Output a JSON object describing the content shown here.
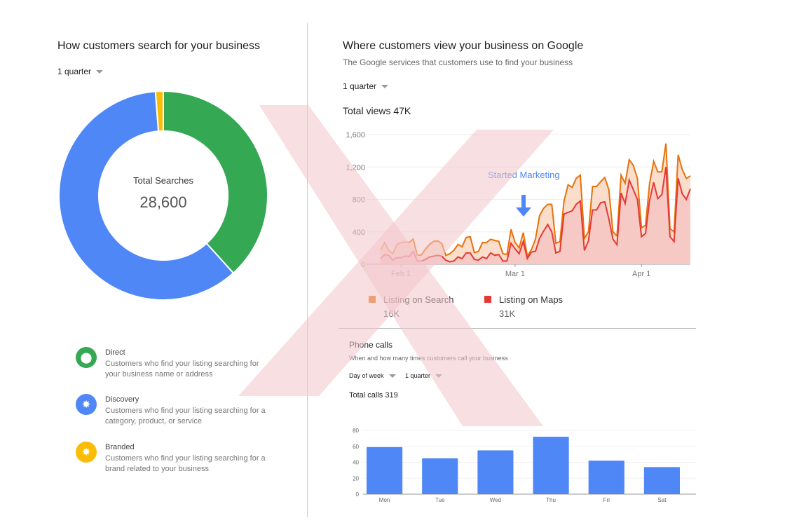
{
  "left": {
    "title": "How customers search for your business",
    "period": "1 quarter",
    "donut": {
      "center_label": "Total Searches",
      "total": "28,600",
      "slices_percent": [
        {
          "key": "direct",
          "value": 38.3,
          "color": "#34a853"
        },
        {
          "key": "discovery",
          "value": 60.5,
          "color": "#4f87f6"
        },
        {
          "key": "branded",
          "value": 1.2,
          "color": "#fbbc05"
        }
      ]
    },
    "legend": [
      {
        "name": "Direct",
        "desc": "Customers who find your listing searching for your business name or address",
        "color": "#34a853",
        "icon": "map-pin-icon"
      },
      {
        "name": "Discovery",
        "desc": "Customers who find your listing searching for a category, product, or service",
        "color": "#4f87f6",
        "icon": "sparkle-icon"
      },
      {
        "name": "Branded",
        "desc": "Customers who find your listing searching for a brand related to your business",
        "color": "#fbbc05",
        "icon": "sparkle-icon"
      }
    ]
  },
  "views": {
    "title": "Where customers view your business on Google",
    "subtitle": "The Google services that customers use to find your business",
    "period": "1 quarter",
    "total": "Total views 47K",
    "annotation": "Started Marketing",
    "legend": [
      {
        "name": "Listing on Search",
        "value": "16K",
        "color": "#e8710a"
      },
      {
        "name": "Listing on Maps",
        "value": "31K",
        "color": "#e53935"
      }
    ]
  },
  "calls": {
    "title": "Phone calls",
    "subtitle": "When and how many times customers call your business",
    "filter_1": "Day of week",
    "filter_2": "1 quarter",
    "total": "Total calls 319"
  },
  "chart_data": [
    {
      "type": "area",
      "stacked": true,
      "x_start": "Jan 27",
      "x_end": "Apr 12",
      "x_ticks": [
        "Feb 1",
        "Mar 1",
        "Apr 1"
      ],
      "y_ticks": [
        "0",
        "400",
        "800",
        "1,200",
        "1,600"
      ],
      "ylim": [
        0,
        1600
      ],
      "grid": true,
      "annotation": {
        "text": "Started Marketing",
        "x": "Mar 1"
      },
      "series": [
        {
          "name": "Listing on Maps",
          "color": "#e53935",
          "values": [
            70,
            120,
            110,
            50,
            80,
            80,
            100,
            95,
            160,
            40,
            40,
            60,
            90,
            100,
            110,
            100,
            50,
            30,
            40,
            90,
            70,
            140,
            140,
            60,
            50,
            90,
            70,
            140,
            110,
            120,
            40,
            40,
            260,
            190,
            130,
            280,
            70,
            150,
            160,
            320,
            410,
            490,
            400,
            140,
            160,
            620,
            640,
            660,
            740,
            780,
            170,
            290,
            670,
            670,
            760,
            770,
            560,
            310,
            240,
            880,
            750,
            1040,
            920,
            800,
            340,
            380,
            790,
            1010,
            810,
            860,
            1200,
            340,
            280,
            1060,
            870,
            800,
            930
          ]
        },
        {
          "name": "Listing on Search",
          "color": "#e8710a",
          "values": [
            103,
            148,
            63,
            80,
            165,
            188,
            175,
            173,
            151,
            70,
            75,
            127,
            155,
            182,
            178,
            159,
            60,
            100,
            133,
            155,
            146,
            191,
            200,
            84,
            108,
            178,
            198,
            168,
            184,
            162,
            90,
            81,
            170,
            80,
            70,
            110,
            30,
            30,
            150,
            280,
            280,
            250,
            340,
            120,
            120,
            160,
            340,
            290,
            320,
            320,
            150,
            110,
            290,
            290,
            260,
            300,
            360,
            90,
            110,
            220,
            250,
            250,
            300,
            260,
            110,
            100,
            210,
            260,
            330,
            280,
            290,
            100,
            120,
            290,
            300,
            260,
            160
          ]
        }
      ]
    },
    {
      "type": "bar",
      "categories": [
        "Mon",
        "Tue",
        "Wed",
        "Thu",
        "Fri",
        "Sat"
      ],
      "values": [
        59,
        45,
        55,
        72,
        42,
        34
      ],
      "y_ticks": [
        "0",
        "20",
        "40",
        "60",
        "80"
      ],
      "ylim": [
        0,
        80
      ],
      "color": "#4f87f6",
      "grid": true
    }
  ]
}
